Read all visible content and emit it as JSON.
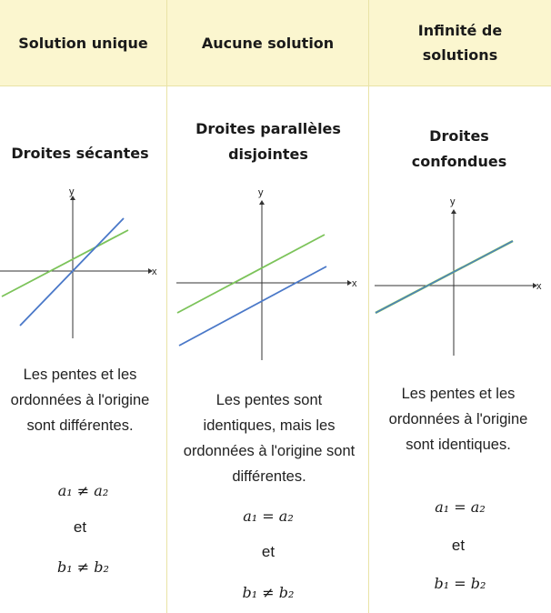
{
  "columns": [
    {
      "header": "Solution unique",
      "title": "Droites sécantes",
      "description": "Les pentes et les ordonnées à l'origine sont différentes.",
      "slope_relation": "a₁ ≠ a₂",
      "connector": "et",
      "intercept_relation": "b₁ ≠ b₂",
      "axis_x": "x",
      "axis_y": "y"
    },
    {
      "header": "Aucune solution",
      "title": "Droites parallèles disjointes",
      "description": "Les pentes sont identiques, mais les ordonnées à l'origine sont différentes.",
      "slope_relation": "a₁ = a₂",
      "connector": "et",
      "intercept_relation": "b₁ ≠ b₂",
      "axis_x": "x",
      "axis_y": "y"
    },
    {
      "header": "Infinité de solutions",
      "title": "Droites confondues",
      "description": "Les pentes et les ordonnées à l'origine sont identiques.",
      "slope_relation": "a₁ = a₂",
      "connector": "et",
      "intercept_relation": "b₁ = b₂",
      "axis_x": "x",
      "axis_y": "y"
    }
  ],
  "colors": {
    "header_bg": "#fbf6cf",
    "grid_line": "#e9e3a6",
    "line_green": "#7cc35a",
    "line_blue": "#4a78c8"
  }
}
